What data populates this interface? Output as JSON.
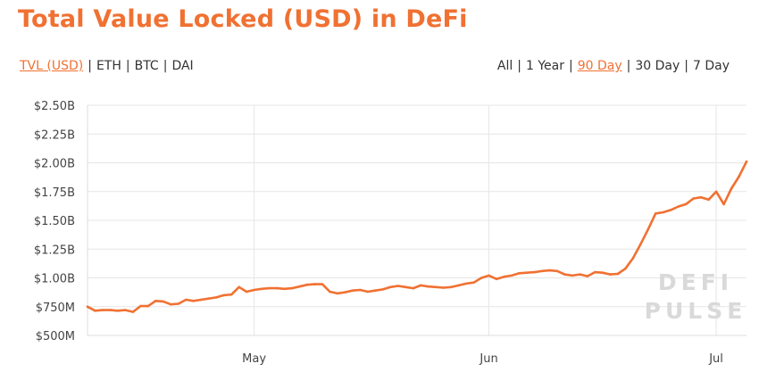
{
  "title": "Total Value Locked (USD) in DeFi",
  "denominations": [
    {
      "label": "TVL (USD)",
      "active": true
    },
    {
      "label": "ETH",
      "active": false
    },
    {
      "label": "BTC",
      "active": false
    },
    {
      "label": "DAI",
      "active": false
    }
  ],
  "ranges": [
    {
      "label": "All",
      "active": false
    },
    {
      "label": "1 Year",
      "active": false
    },
    {
      "label": "90 Day",
      "active": true
    },
    {
      "label": "30 Day",
      "active": false
    },
    {
      "label": "7 Day",
      "active": false
    }
  ],
  "separator": "|",
  "watermark": [
    "DEFI",
    "PULSE"
  ],
  "colors": {
    "accent": "#f07132",
    "line": "#f07132",
    "grid": "#e6e6e6",
    "watermark": "#d9d9d9"
  },
  "chart_data": {
    "type": "line",
    "title": "Total Value Locked (USD) in DeFi",
    "xlabel": "",
    "ylabel": "",
    "grid": true,
    "x_tick_labels": [
      "May",
      "Jun",
      "Jul"
    ],
    "x_ticks": [
      "2020-05-01",
      "2020-06-01",
      "2020-07-01"
    ],
    "x_range": [
      "2020-04-09",
      "2020-07-05"
    ],
    "ylim": [
      500,
      2500
    ],
    "y_unit": "USD millions",
    "y_tick_labels": [
      "$500M",
      "$750M",
      "$1.00B",
      "$1.25B",
      "$1.50B",
      "$1.75B",
      "$2.00B",
      "$2.25B",
      "$2.50B"
    ],
    "series": [
      {
        "x": [
          "2020-04-09",
          "2020-04-10",
          "2020-04-11",
          "2020-04-12",
          "2020-04-13",
          "2020-04-14",
          "2020-04-15",
          "2020-04-16",
          "2020-04-17",
          "2020-04-18",
          "2020-04-19",
          "2020-04-20",
          "2020-04-21",
          "2020-04-22",
          "2020-04-23",
          "2020-04-24",
          "2020-04-25",
          "2020-04-26",
          "2020-04-27",
          "2020-04-28",
          "2020-04-29",
          "2020-04-30",
          "2020-05-01",
          "2020-05-02",
          "2020-05-03",
          "2020-05-04",
          "2020-05-05",
          "2020-05-06",
          "2020-05-07",
          "2020-05-08",
          "2020-05-09",
          "2020-05-10",
          "2020-05-11",
          "2020-05-12",
          "2020-05-13",
          "2020-05-14",
          "2020-05-15",
          "2020-05-16",
          "2020-05-17",
          "2020-05-18",
          "2020-05-19",
          "2020-05-20",
          "2020-05-21",
          "2020-05-22",
          "2020-05-23",
          "2020-05-24",
          "2020-05-25",
          "2020-05-26",
          "2020-05-27",
          "2020-05-28",
          "2020-05-29",
          "2020-05-30",
          "2020-05-31",
          "2020-06-01",
          "2020-06-02",
          "2020-06-03",
          "2020-06-04",
          "2020-06-05",
          "2020-06-06",
          "2020-06-07",
          "2020-06-08",
          "2020-06-09",
          "2020-06-10",
          "2020-06-11",
          "2020-06-12",
          "2020-06-13",
          "2020-06-14",
          "2020-06-15",
          "2020-06-16",
          "2020-06-17",
          "2020-06-18",
          "2020-06-19",
          "2020-06-20",
          "2020-06-21",
          "2020-06-22",
          "2020-06-23",
          "2020-06-24",
          "2020-06-25",
          "2020-06-26",
          "2020-06-27",
          "2020-06-28",
          "2020-06-29",
          "2020-06-30",
          "2020-07-01",
          "2020-07-02",
          "2020-07-03",
          "2020-07-04",
          "2020-07-05"
        ],
        "y": [
          750,
          715,
          720,
          720,
          715,
          720,
          705,
          755,
          755,
          800,
          795,
          770,
          775,
          810,
          800,
          810,
          820,
          830,
          850,
          855,
          920,
          880,
          895,
          905,
          910,
          910,
          905,
          910,
          925,
          940,
          945,
          945,
          880,
          865,
          875,
          890,
          895,
          880,
          890,
          900,
          920,
          930,
          920,
          910,
          935,
          925,
          920,
          915,
          920,
          935,
          950,
          960,
          1000,
          1020,
          990,
          1010,
          1020,
          1040,
          1045,
          1050,
          1060,
          1065,
          1060,
          1030,
          1020,
          1030,
          1015,
          1050,
          1045,
          1030,
          1035,
          1080,
          1170,
          1290,
          1420,
          1560,
          1570,
          1590,
          1620,
          1640,
          1690,
          1700,
          1680,
          1750,
          1640,
          1775,
          1880,
          2010
        ]
      }
    ]
  }
}
